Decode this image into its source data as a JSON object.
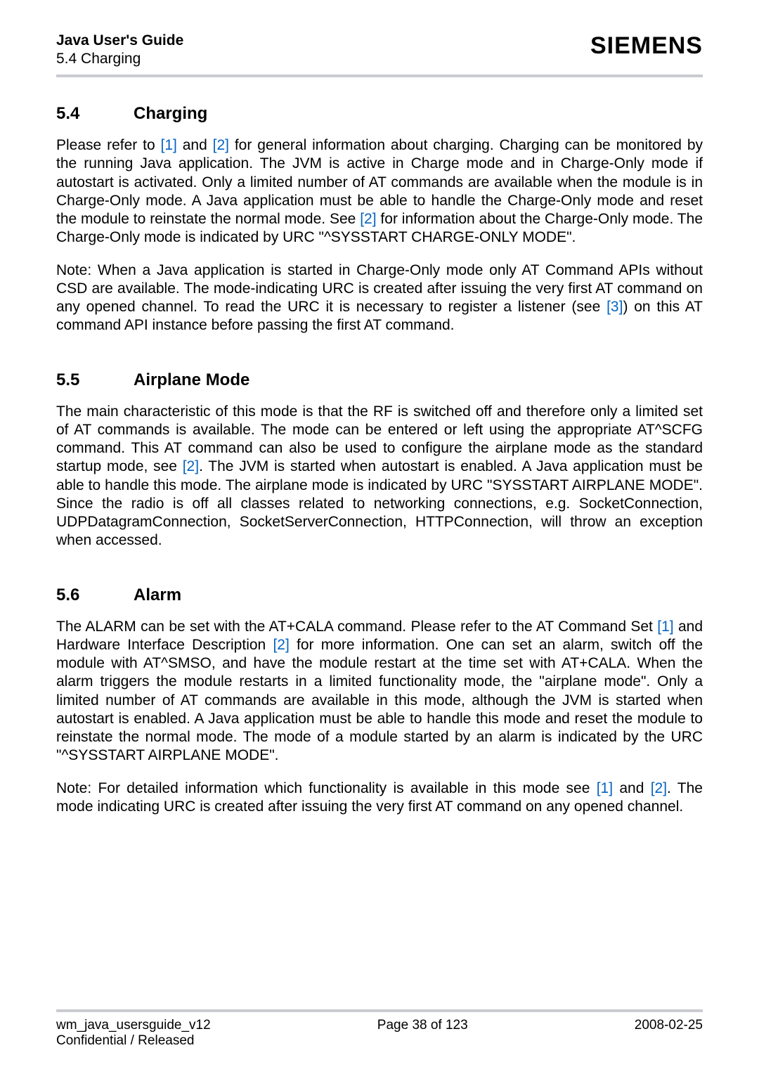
{
  "header": {
    "docTitle": "Java User's Guide",
    "docSubtitle": "5.4 Charging",
    "brand": "SIEMENS"
  },
  "sections": {
    "s54": {
      "num": "5.4",
      "title": "Charging"
    },
    "s55": {
      "num": "5.5",
      "title": "Airplane Mode"
    },
    "s56": {
      "num": "5.6",
      "title": "Alarm"
    }
  },
  "para": {
    "s54p1a": "Please refer to ",
    "s54p1_ref1": "[1]",
    "s54p1b": " and ",
    "s54p1_ref2": "[2]",
    "s54p1c": " for general information about charging. Charging can be monitored by the running Java application. The JVM is active in Charge mode and in Charge-Only mode if autostart is activated. Only a limited number of AT commands are available when the module is in Charge-Only mode. A Java application must be able to handle the Charge-Only mode and reset the module to reinstate the normal mode. See ",
    "s54p1_ref3": "[2]",
    "s54p1d": " for information about the Charge-Only mode. The Charge-Only mode is indicated by URC \"^SYSSTART CHARGE-ONLY MODE\".",
    "s54p2a": "Note: When a Java application is started in Charge-Only mode only AT Command APIs without CSD are available. The mode-indicating URC is created after issuing the very first AT command on any opened channel. To read the URC it is necessary to register a listener (see ",
    "s54p2_ref1": "[3]",
    "s54p2b": ") on this AT command API instance before passing the first AT command.",
    "s55p1a": "The main characteristic of this mode is that the RF is switched off and therefore only a limited set of AT commands is available. The mode can be entered or left using the appropriate AT^SCFG command. This AT command can also be used to configure the airplane mode as the standard startup mode, see ",
    "s55p1_ref1": "[2]",
    "s55p1b": ". The JVM is started when autostart is enabled. A Java application must be able to handle this mode. The airplane mode is indicated by URC \"SYSSTART AIRPLANE MODE\". Since the radio is off all classes related to networking connections, e.g. SocketConnection, UDPDatagramConnection, SocketServerConnection, HTTPConnection, will throw an exception when accessed.",
    "s56p1a": "The ALARM can be set with the AT+CALA command. Please refer to the AT Command Set ",
    "s56p1_ref1": "[1]",
    "s56p1b": " and Hardware Interface Description ",
    "s56p1_ref2": "[2]",
    "s56p1c": " for more information. One can set an alarm, switch off the module with AT^SMSO, and have the module restart at the time set with AT+CALA. When the alarm triggers the module restarts in a limited functionality mode, the \"airplane mode\". Only a limited number of AT commands are available in this mode, although the JVM is started when autostart is enabled. A Java application must be able to handle this mode and reset the module to reinstate the normal mode. The mode of a module started by an alarm is indicated by the URC \"^SYSSTART AIRPLANE MODE\".",
    "s56p2a": "Note: For detailed information which functionality is available in this mode see ",
    "s56p2_ref1": "[1]",
    "s56p2b": " and ",
    "s56p2_ref2": "[2]",
    "s56p2c": ". The mode indicating URC is created after issuing the very first AT command on any opened channel."
  },
  "footer": {
    "left1": "wm_java_usersguide_v12",
    "left2": "Confidential / Released",
    "center": "Page 38 of 123",
    "right": "2008-02-25"
  }
}
